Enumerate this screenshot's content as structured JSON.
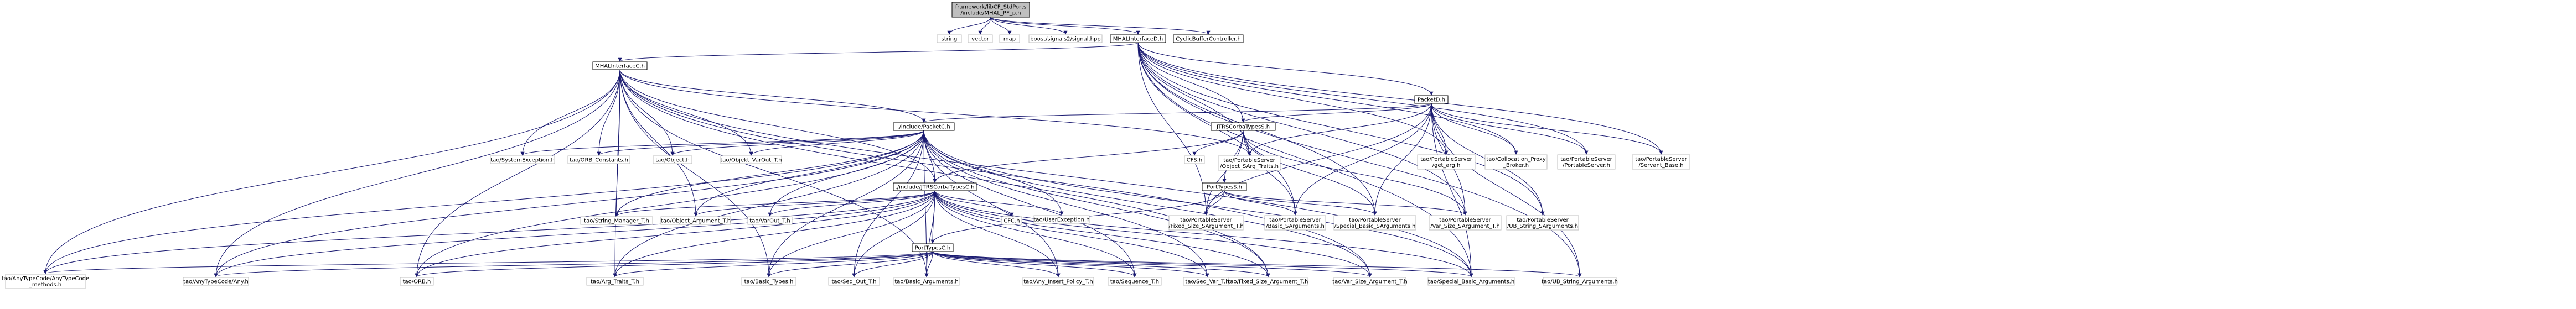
{
  "diagram": {
    "root": {
      "id": "root",
      "lines": [
        "framework/libCF_StdPorts",
        "/include/MHAL_PF_p.h"
      ]
    },
    "nodes": [
      {
        "id": "string",
        "lines": [
          "string"
        ]
      },
      {
        "id": "vector",
        "lines": [
          "vector"
        ]
      },
      {
        "id": "map",
        "lines": [
          "map"
        ]
      },
      {
        "id": "boost",
        "lines": [
          "boost/signals2/signal.hpp"
        ]
      },
      {
        "id": "mhal_if_d",
        "lines": [
          "MHALInterfaceD.h"
        ]
      },
      {
        "id": "cyclic",
        "lines": [
          "CyclicBufferController.h"
        ]
      },
      {
        "id": "mhal_if_c",
        "lines": [
          "MHALInterfaceC.h"
        ]
      },
      {
        "id": "packet_d",
        "lines": [
          "PacketD.h"
        ]
      },
      {
        "id": "pkt_c",
        "lines": [
          "./include/PacketC.h"
        ]
      },
      {
        "id": "jtrs_s",
        "lines": [
          "JTRSCorbaTypesS.h"
        ]
      },
      {
        "id": "sysexc",
        "lines": [
          "tao/SystemException.h"
        ]
      },
      {
        "id": "orb_const",
        "lines": [
          "tao/ORB_Constants.h"
        ]
      },
      {
        "id": "object",
        "lines": [
          "tao/Object.h"
        ]
      },
      {
        "id": "obj_varout",
        "lines": [
          "tao/Objekt_VarOut_T.h"
        ]
      },
      {
        "id": "get_arg",
        "lines": [
          "tao/PortableServer",
          "/get_arg.h"
        ]
      },
      {
        "id": "colloc",
        "lines": [
          "tao/Collocation_Proxy",
          "_Broker.h"
        ]
      },
      {
        "id": "ps_h",
        "lines": [
          "tao/PortableServer",
          "/PortableServer.h"
        ]
      },
      {
        "id": "servant_base",
        "lines": [
          "tao/PortableServer",
          "/Servant_Base.h"
        ]
      },
      {
        "id": "cfs",
        "lines": [
          "CFS.h"
        ]
      },
      {
        "id": "obj_sarg",
        "lines": [
          "tao/PortableServer",
          "/Object_SArg_Traits.h"
        ]
      },
      {
        "id": "jtrs_c",
        "lines": [
          "./include/JTRSCorbaTypesC.h"
        ]
      },
      {
        "id": "user_exc",
        "lines": [
          "tao/UserException.h"
        ]
      },
      {
        "id": "port_s",
        "lines": [
          "PortTypesS.h"
        ]
      },
      {
        "id": "string_mgr",
        "lines": [
          "tao/String_Manager_T.h"
        ]
      },
      {
        "id": "obj_arg",
        "lines": [
          "tao/Object_Argument_T.h"
        ]
      },
      {
        "id": "var_out",
        "lines": [
          "tao/VarOut_T.h"
        ]
      },
      {
        "id": "cfc",
        "lines": [
          "CFC.h"
        ]
      },
      {
        "id": "port_c",
        "lines": [
          "PortTypesC.h"
        ]
      },
      {
        "id": "fixed_sarg",
        "lines": [
          "tao/PortableServer",
          "/Fixed_Size_SArgument_T.h"
        ]
      },
      {
        "id": "basic_sargs",
        "lines": [
          "tao/PortableServer",
          "/Basic_SArguments.h"
        ]
      },
      {
        "id": "special_sargs",
        "lines": [
          "tao/PortableServer",
          "/Special_Basic_SArguments.h"
        ]
      },
      {
        "id": "var_sarg",
        "lines": [
          "tao/PortableServer",
          "/Var_Size_SArgument_T.h"
        ]
      },
      {
        "id": "ub_sargs",
        "lines": [
          "tao/PortableServer",
          "/UB_String_SArguments.h"
        ]
      },
      {
        "id": "anytc_any",
        "lines": [
          "tao/AnyTypeCode/AnyTypeCode",
          "_methods.h"
        ]
      },
      {
        "id": "anytc",
        "lines": [
          "tao/AnyTypeCode/Any.h"
        ]
      },
      {
        "id": "orb",
        "lines": [
          "tao/ORB.h"
        ]
      },
      {
        "id": "arg_traits",
        "lines": [
          "tao/Arg_Traits_T.h"
        ]
      },
      {
        "id": "basic_types",
        "lines": [
          "tao/Basic_Types.h"
        ]
      },
      {
        "id": "seq_out",
        "lines": [
          "tao/Seq_Out_T.h"
        ]
      },
      {
        "id": "basic_args",
        "lines": [
          "tao/Basic_Arguments.h"
        ]
      },
      {
        "id": "any_insert",
        "lines": [
          "tao/Any_Insert_Policy_T.h"
        ]
      },
      {
        "id": "sequence",
        "lines": [
          "tao/Sequence_T.h"
        ]
      },
      {
        "id": "seq_var",
        "lines": [
          "tao/Seq_Var_T.h"
        ]
      },
      {
        "id": "fixed_arg",
        "lines": [
          "tao/Fixed_Size_Argument_T.h"
        ]
      },
      {
        "id": "var_arg",
        "lines": [
          "tao/Var_Size_Argument_T.h"
        ]
      },
      {
        "id": "special_args",
        "lines": [
          "tao/Special_Basic_Arguments.h"
        ]
      },
      {
        "id": "ub_args",
        "lines": [
          "tao/UB_String_Arguments.h"
        ]
      }
    ]
  }
}
